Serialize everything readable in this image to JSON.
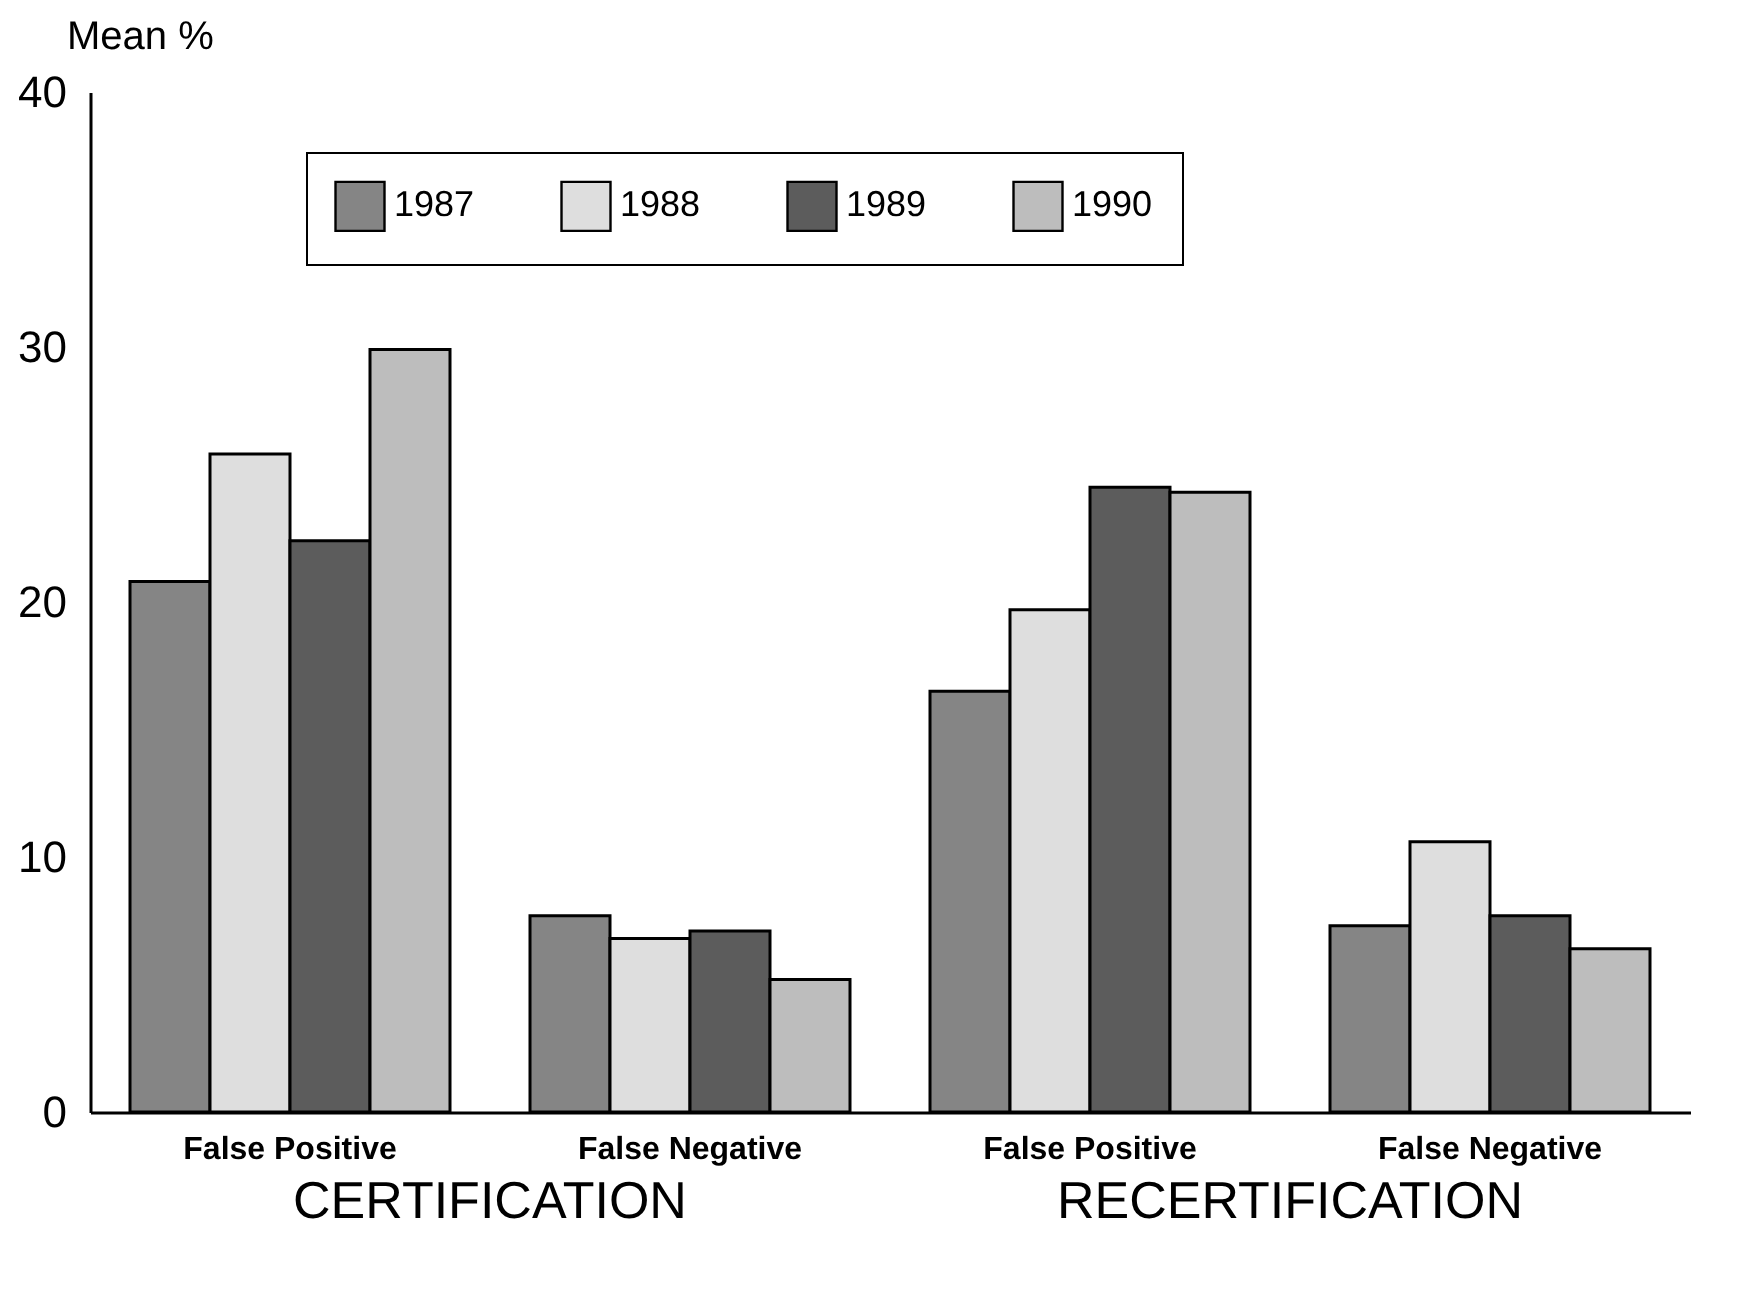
{
  "chart_data": {
    "type": "bar",
    "ylabel": "Mean %",
    "categories": [
      "False Positive",
      "False Negative",
      "False Positive",
      "False Negative"
    ],
    "series": [
      {
        "name": "1987",
        "color": "#858585",
        "values": [
          20.8,
          7.7,
          16.5,
          7.3
        ]
      },
      {
        "name": "1988",
        "color": "#dedede",
        "values": [
          25.8,
          6.8,
          19.7,
          10.6
        ]
      },
      {
        "name": "1989",
        "color": "#5c5c5c",
        "values": [
          22.4,
          7.1,
          24.5,
          7.7
        ]
      },
      {
        "name": "1990",
        "color": "#bdbdbd",
        "values": [
          29.9,
          5.2,
          24.3,
          6.4
        ]
      }
    ],
    "ylim": [
      0,
      40
    ],
    "yticks": [
      0,
      10,
      20,
      30,
      40
    ],
    "grid": false,
    "legend": "top",
    "annotations": [
      "CERTIFICATION",
      "RECERTIFICATION"
    ]
  }
}
